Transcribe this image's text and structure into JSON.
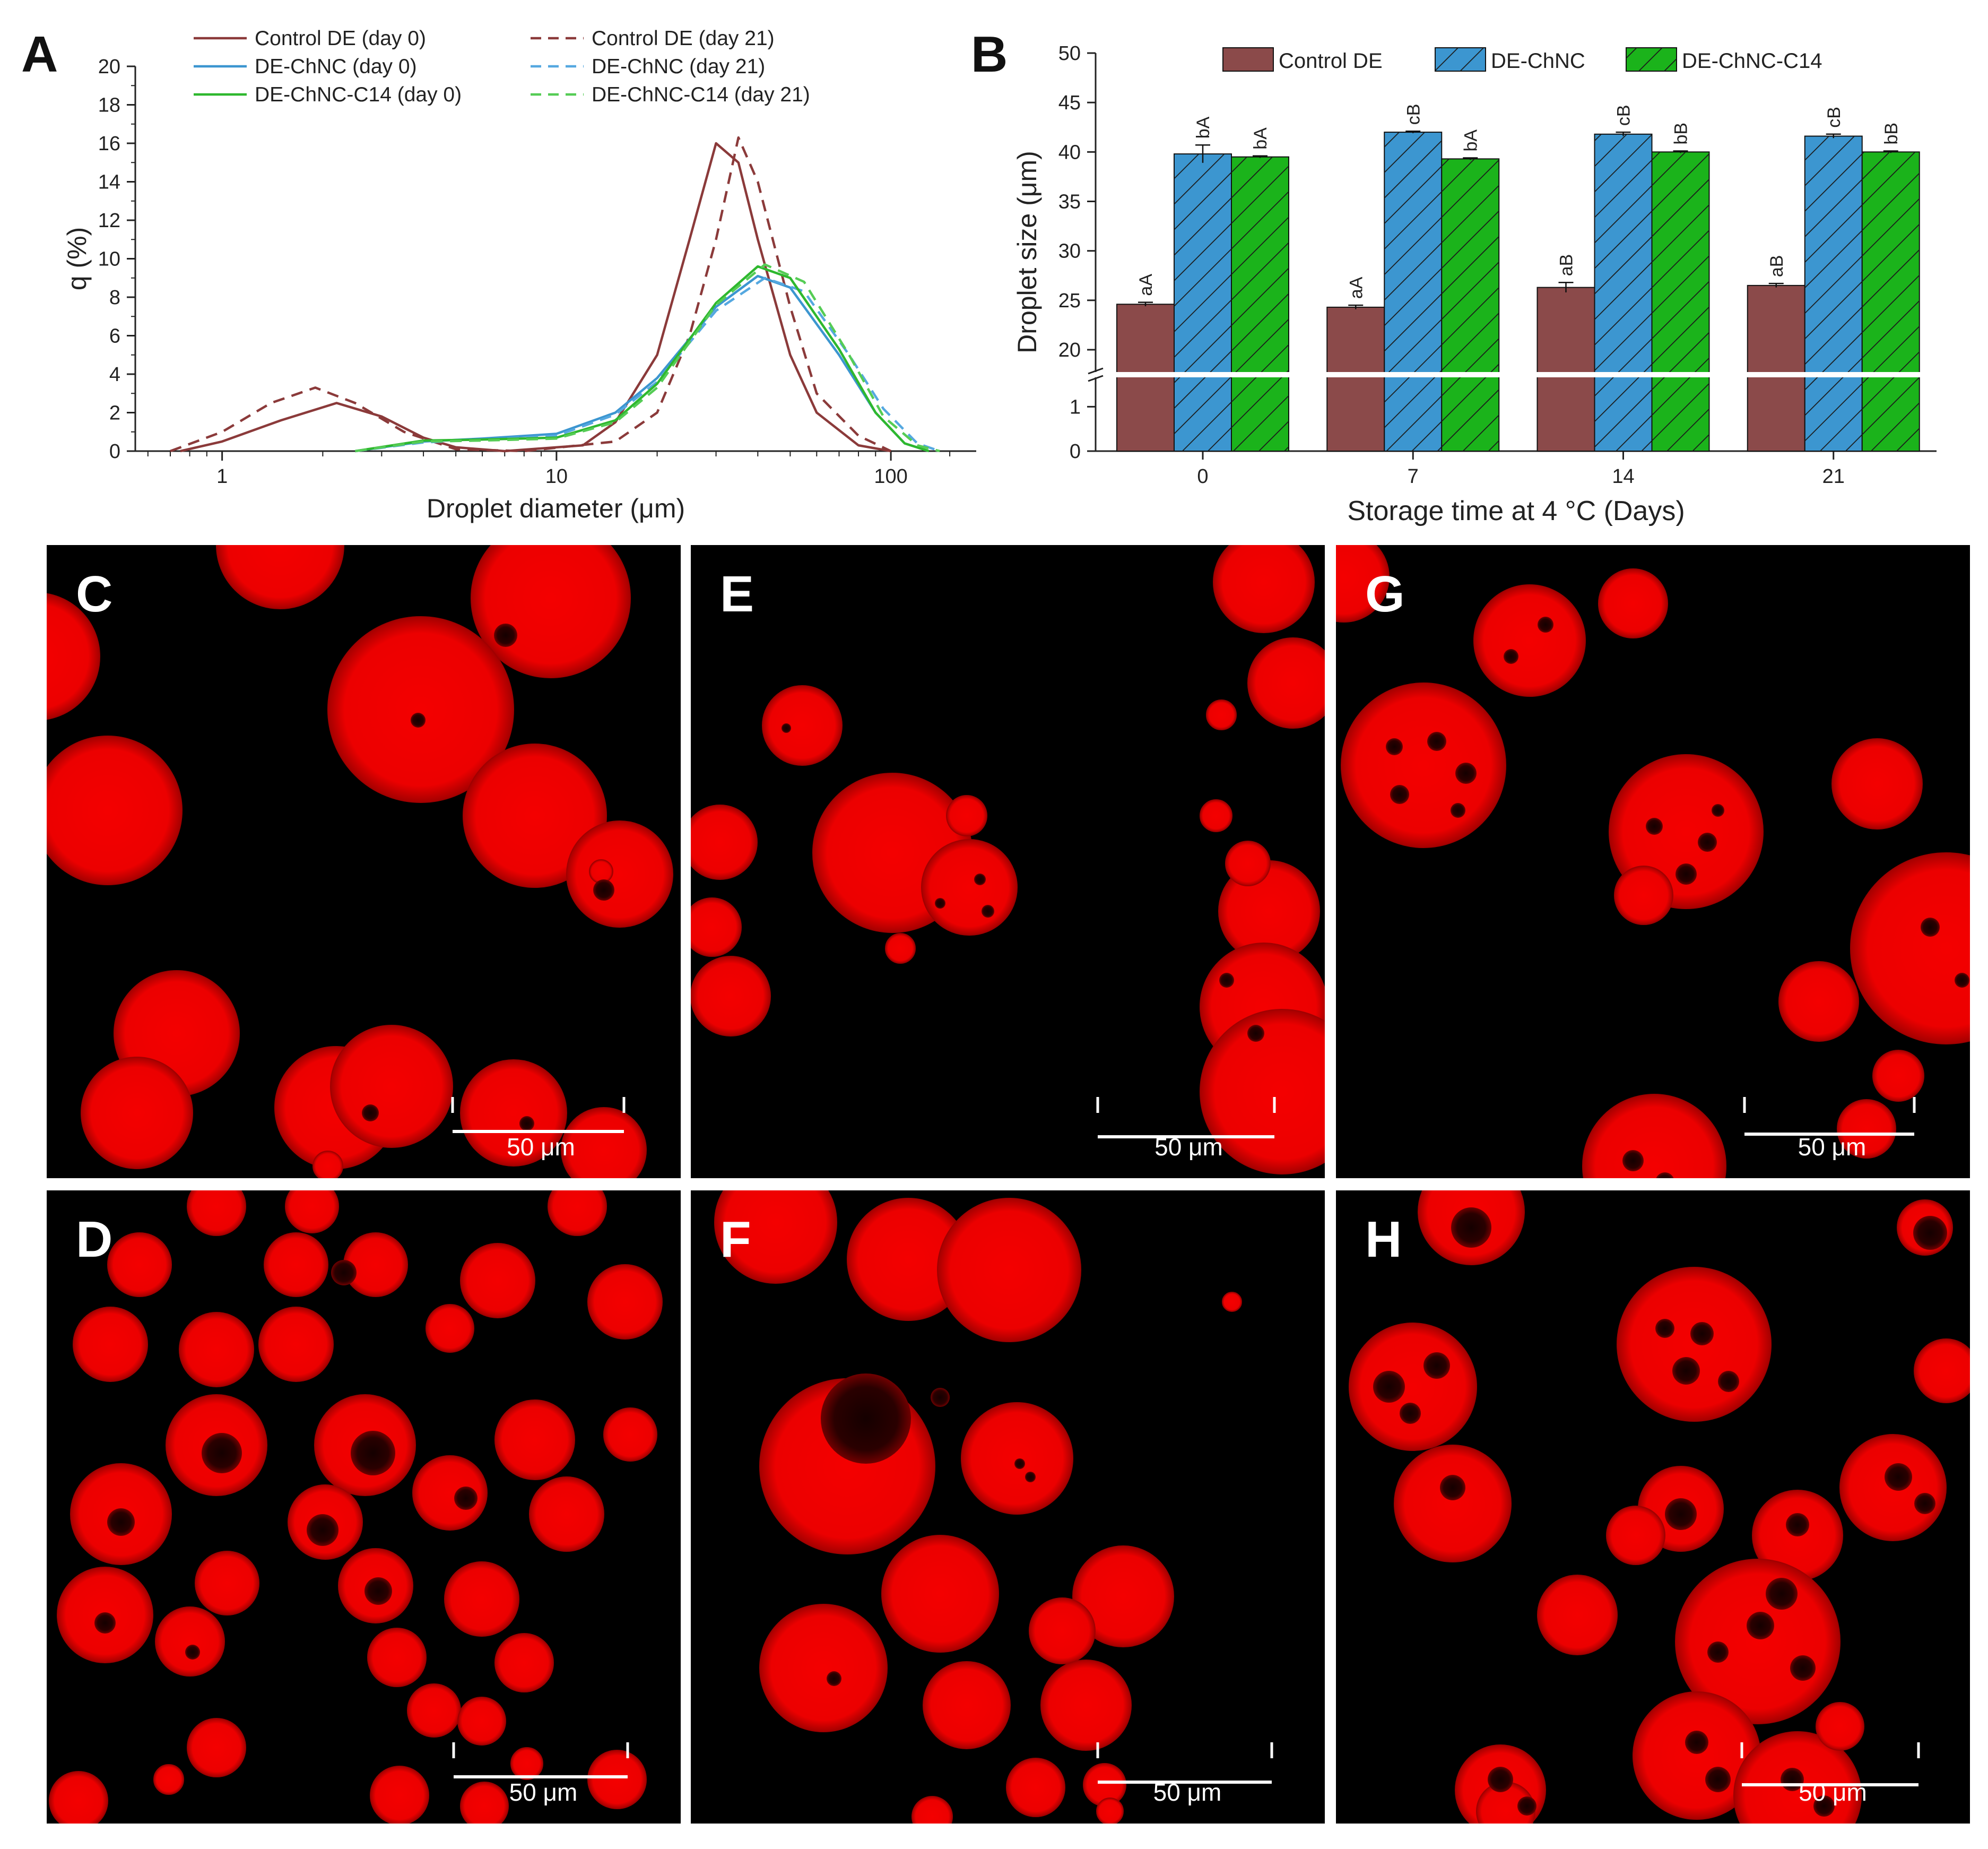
{
  "chart_data": [
    {
      "panel": "A",
      "type": "line",
      "xlabel": "Droplet diameter (μm)",
      "ylabel": "q (%)",
      "xscale": "log",
      "xlim": [
        0.55,
        180
      ],
      "ylim": [
        0,
        20
      ],
      "x_ticks": [
        1,
        10,
        100
      ],
      "y_ticks": [
        0,
        2,
        4,
        6,
        8,
        10,
        12,
        14,
        16,
        18,
        20
      ],
      "grid": false,
      "legend_position": "top",
      "series": [
        {
          "name": "Control DE (day 0)",
          "color": "#8B3A3A",
          "dash": "solid",
          "points": [
            {
              "x": 0.75,
              "y": 0
            },
            {
              "x": 1.0,
              "y": 0.5
            },
            {
              "x": 1.5,
              "y": 1.6
            },
            {
              "x": 2.2,
              "y": 2.5
            },
            {
              "x": 3,
              "y": 1.8
            },
            {
              "x": 4,
              "y": 0.7
            },
            {
              "x": 5,
              "y": 0.2
            },
            {
              "x": 7,
              "y": 0
            },
            {
              "x": 12,
              "y": 0.3
            },
            {
              "x": 15,
              "y": 1.5
            },
            {
              "x": 20,
              "y": 5
            },
            {
              "x": 25,
              "y": 11
            },
            {
              "x": 30,
              "y": 16
            },
            {
              "x": 35,
              "y": 15
            },
            {
              "x": 40,
              "y": 11
            },
            {
              "x": 50,
              "y": 5
            },
            {
              "x": 60,
              "y": 2
            },
            {
              "x": 80,
              "y": 0.3
            },
            {
              "x": 100,
              "y": 0
            }
          ]
        },
        {
          "name": "Control DE (day 21)",
          "color": "#8B3A3A",
          "dash": "dashed",
          "points": [
            {
              "x": 0.7,
              "y": 0
            },
            {
              "x": 1.0,
              "y": 1.0
            },
            {
              "x": 1.4,
              "y": 2.5
            },
            {
              "x": 1.9,
              "y": 3.3
            },
            {
              "x": 2.5,
              "y": 2.5
            },
            {
              "x": 3.5,
              "y": 1.0
            },
            {
              "x": 5,
              "y": 0.1
            },
            {
              "x": 8,
              "y": 0
            },
            {
              "x": 15,
              "y": 0.5
            },
            {
              "x": 20,
              "y": 2
            },
            {
              "x": 25,
              "y": 6
            },
            {
              "x": 30,
              "y": 11
            },
            {
              "x": 35,
              "y": 16.3
            },
            {
              "x": 40,
              "y": 14
            },
            {
              "x": 50,
              "y": 7.5
            },
            {
              "x": 60,
              "y": 3
            },
            {
              "x": 80,
              "y": 0.8
            },
            {
              "x": 100,
              "y": 0
            }
          ]
        },
        {
          "name": "DE-ChNC (day 0)",
          "color": "#3C96D0",
          "dash": "solid",
          "points": [
            {
              "x": 2.5,
              "y": 0
            },
            {
              "x": 4,
              "y": 0.5
            },
            {
              "x": 6,
              "y": 0.65
            },
            {
              "x": 10,
              "y": 0.9
            },
            {
              "x": 15,
              "y": 2
            },
            {
              "x": 20,
              "y": 3.8
            },
            {
              "x": 30,
              "y": 7.5
            },
            {
              "x": 40,
              "y": 9.1
            },
            {
              "x": 50,
              "y": 8.5
            },
            {
              "x": 70,
              "y": 5
            },
            {
              "x": 90,
              "y": 2
            },
            {
              "x": 110,
              "y": 0.4
            },
            {
              "x": 130,
              "y": 0
            }
          ]
        },
        {
          "name": "DE-ChNC (day 21)",
          "color": "#55A8E0",
          "dash": "dashed",
          "points": [
            {
              "x": 2.5,
              "y": 0
            },
            {
              "x": 4,
              "y": 0.45
            },
            {
              "x": 6,
              "y": 0.6
            },
            {
              "x": 10,
              "y": 0.8
            },
            {
              "x": 15,
              "y": 1.9
            },
            {
              "x": 20,
              "y": 3.6
            },
            {
              "x": 30,
              "y": 7.3
            },
            {
              "x": 42,
              "y": 9.0
            },
            {
              "x": 55,
              "y": 8.3
            },
            {
              "x": 75,
              "y": 5
            },
            {
              "x": 95,
              "y": 2.2
            },
            {
              "x": 120,
              "y": 0.4
            },
            {
              "x": 140,
              "y": 0
            }
          ]
        },
        {
          "name": "DE-ChNC-C14 (day 0)",
          "color": "#2EB82E",
          "dash": "solid",
          "points": [
            {
              "x": 2.5,
              "y": 0
            },
            {
              "x": 4,
              "y": 0.55
            },
            {
              "x": 6,
              "y": 0.6
            },
            {
              "x": 10,
              "y": 0.7
            },
            {
              "x": 15,
              "y": 1.6
            },
            {
              "x": 20,
              "y": 3.5
            },
            {
              "x": 30,
              "y": 7.7
            },
            {
              "x": 40,
              "y": 9.6
            },
            {
              "x": 50,
              "y": 9.0
            },
            {
              "x": 70,
              "y": 5.3
            },
            {
              "x": 90,
              "y": 2
            },
            {
              "x": 110,
              "y": 0.4
            },
            {
              "x": 130,
              "y": 0
            }
          ]
        },
        {
          "name": "DE-ChNC-C14 (day 21)",
          "color": "#55CC55",
          "dash": "dashed",
          "points": [
            {
              "x": 2.5,
              "y": 0
            },
            {
              "x": 4,
              "y": 0.5
            },
            {
              "x": 6,
              "y": 0.55
            },
            {
              "x": 10,
              "y": 0.65
            },
            {
              "x": 15,
              "y": 1.5
            },
            {
              "x": 20,
              "y": 3.3
            },
            {
              "x": 30,
              "y": 7.6
            },
            {
              "x": 42,
              "y": 9.7
            },
            {
              "x": 55,
              "y": 8.8
            },
            {
              "x": 75,
              "y": 5
            },
            {
              "x": 95,
              "y": 1.8
            },
            {
              "x": 120,
              "y": 0.3
            },
            {
              "x": 140,
              "y": 0
            }
          ]
        }
      ]
    },
    {
      "panel": "B",
      "type": "bar",
      "xlabel": "Storage time at 4 °C (Days)",
      "ylabel": "Droplet size (μm)",
      "categories": [
        "0",
        "7",
        "14",
        "21"
      ],
      "y_ticks_upper": [
        20,
        25,
        30,
        35,
        40,
        45,
        50
      ],
      "y_ticks_lower": [
        0,
        1
      ],
      "ylim_upper": [
        17.8,
        50
      ],
      "ylim_lower": [
        0,
        1.65
      ],
      "broken_axis": true,
      "legend_position": "top",
      "series": [
        {
          "name": "Control DE",
          "color": "#8B4A4A",
          "hatch": false,
          "values": [
            24.6,
            24.3,
            26.3,
            26.5
          ],
          "errors": [
            0.2,
            0.2,
            0.5,
            0.2
          ],
          "labels": [
            "aA",
            "aA",
            "aB",
            "aB"
          ]
        },
        {
          "name": "DE-ChNC",
          "color": "#3C96D0",
          "hatch": true,
          "values": [
            39.8,
            42.0,
            41.8,
            41.6
          ],
          "errors": [
            0.9,
            0.1,
            0.2,
            0.2
          ],
          "labels": [
            "bA",
            "cB",
            "cB",
            "cB"
          ]
        },
        {
          "name": "DE-ChNC-C14",
          "color": "#1BB31B",
          "hatch": true,
          "values": [
            39.5,
            39.3,
            40.0,
            40.0
          ],
          "errors": [
            0.1,
            0.1,
            0.1,
            0.1
          ],
          "labels": [
            "bA",
            "bA",
            "bB",
            "bB"
          ]
        }
      ]
    }
  ],
  "micrographs": [
    {
      "letter": "C",
      "scale_bar_label": "50 μm"
    },
    {
      "letter": "E",
      "scale_bar_label": "50 μm"
    },
    {
      "letter": "G",
      "scale_bar_label": "50 μm"
    },
    {
      "letter": "D",
      "scale_bar_label": "50 μm"
    },
    {
      "letter": "F",
      "scale_bar_label": "50 μm"
    },
    {
      "letter": "H",
      "scale_bar_label": "50 μm"
    }
  ],
  "colors": {
    "micrograph_background": "#000000",
    "droplet_fill": "#F00000",
    "droplet_edge": "#A00000",
    "inclusion": "#200000"
  }
}
